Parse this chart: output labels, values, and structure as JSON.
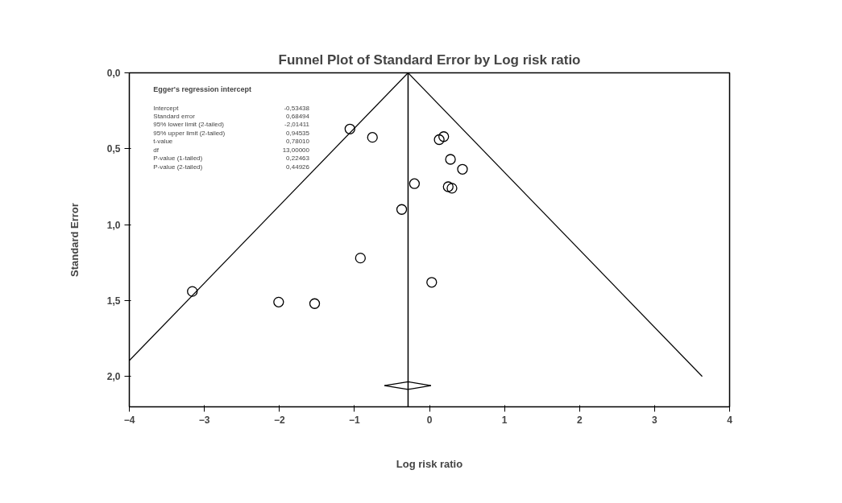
{
  "chart_data": {
    "type": "scatter",
    "title": "Funnel Plot of Standard Error by Log risk ratio",
    "xlabel": "Log risk ratio",
    "ylabel": "Standard Error",
    "xlim": [
      -4,
      4
    ],
    "xticks": [
      -4,
      -3,
      -2,
      -1,
      0,
      1,
      2,
      3,
      4
    ],
    "ylim": [
      2.2,
      0
    ],
    "yticks": [
      {
        "value": 0,
        "label": "0,0"
      },
      {
        "value": 0.5,
        "label": "0,5"
      },
      {
        "value": 1,
        "label": "1,0"
      },
      {
        "value": 1.5,
        "label": "1,5"
      },
      {
        "value": 2,
        "label": "2,0"
      }
    ],
    "grid": false,
    "marker": "circle",
    "series": [
      {
        "color": "#000000",
        "x": [
          -1.06,
          -0.76,
          0.19,
          0.13,
          0.28,
          0.44,
          -0.2,
          0.25,
          0.3,
          -0.37,
          -0.92,
          0.03,
          -3.16,
          -2.01,
          -1.53
        ],
        "values": [
          0.37,
          0.425,
          0.42,
          0.44,
          0.57,
          0.635,
          0.73,
          0.75,
          0.76,
          0.9,
          1.22,
          1.38,
          1.44,
          1.51,
          1.52
        ]
      },
      {
        "type": "line",
        "marker": "none",
        "color": "#000000",
        "x": [
          -4,
          -0.285
        ],
        "values": [
          1.895,
          0
        ]
      },
      {
        "type": "line",
        "marker": "none",
        "color": "#000000",
        "x": [
          -0.285,
          3.635
        ],
        "values": [
          0,
          2.0
        ]
      },
      {
        "type": "line",
        "marker": "none",
        "color": "#000000",
        "x": [
          -0.6,
          -0.285,
          0.02
        ],
        "values": [
          2.06,
          2.035,
          2.06
        ]
      },
      {
        "type": "line",
        "marker": "none",
        "color": "#000000",
        "x": [
          -0.6,
          -0.285,
          0.02
        ],
        "values": [
          2.06,
          2.085,
          2.06
        ]
      }
    ],
    "ref_lines": [
      {
        "axis": "x",
        "value": -0.285,
        "color": "#000000"
      }
    ],
    "annotations": [
      "Egger's regression intercept",
      "Intercept",
      "-0,53438",
      "Standard error",
      "0,68494",
      "95% lower limit (2-tailed)",
      "-2,01411",
      "95% upper limit (2-tailed)",
      "0,94535",
      "t-value",
      "0,78010",
      "df",
      "13,00000",
      "P-value (1-tailed)",
      "0,22463",
      "P-value (2-tailed)",
      "0,44926"
    ]
  }
}
